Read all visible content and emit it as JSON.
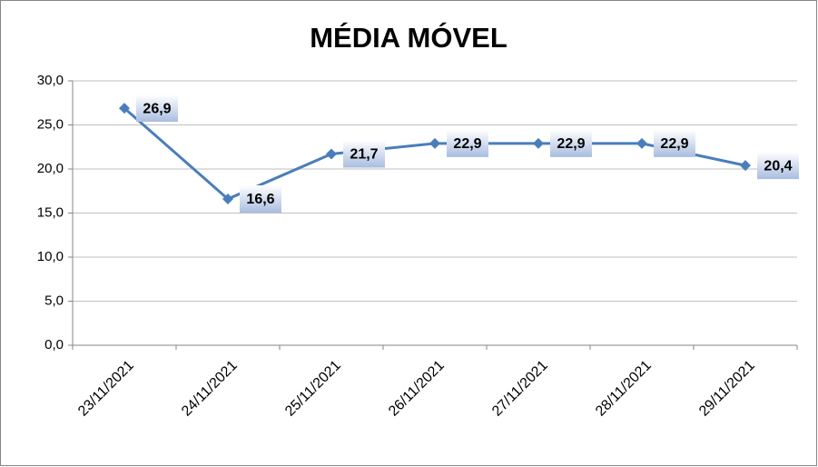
{
  "chart_data": {
    "type": "line",
    "title": "MÉDIA MÓVEL",
    "categories": [
      "23/11/2021",
      "24/11/2021",
      "25/11/2021",
      "26/11/2021",
      "27/11/2021",
      "28/11/2021",
      "29/11/2021"
    ],
    "values": [
      26.9,
      16.6,
      21.7,
      22.9,
      22.9,
      22.9,
      20.4
    ],
    "value_labels": [
      "26,9",
      "16,6",
      "21,7",
      "22,9",
      "22,9",
      "22,9",
      "20,4"
    ],
    "color": "#4a7ebb",
    "ylim": [
      0,
      30
    ],
    "yticks": [
      {
        "value": 0,
        "label": "0,0"
      },
      {
        "value": 5,
        "label": "5,0"
      },
      {
        "value": 10,
        "label": "10,0"
      },
      {
        "value": 15,
        "label": "15,0"
      },
      {
        "value": 20,
        "label": "20,0"
      },
      {
        "value": 25,
        "label": "25,0"
      },
      {
        "value": 30,
        "label": "30,0"
      }
    ],
    "grid": true
  }
}
